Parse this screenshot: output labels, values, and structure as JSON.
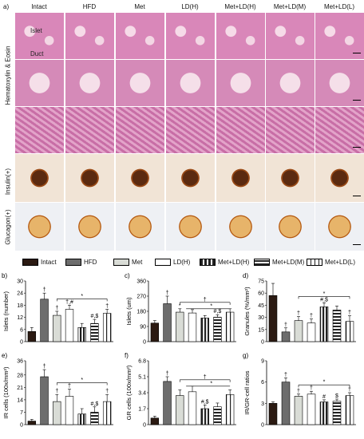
{
  "figure_label": "a)",
  "columns": [
    "Intact",
    "HFD",
    "Met",
    "LD(H)",
    "Met+LD(H)",
    "Met+LD(M)",
    "Met+LD(L)"
  ],
  "row_labels": {
    "he": "Hematoxylin & Eosin",
    "insulin": "Insulin(+)",
    "glucagon": "Glucagon(+)"
  },
  "annotations": {
    "islet": "Islet",
    "duct": "Duct"
  },
  "legend": [
    "Intact",
    "HFD",
    "Met",
    "LD(H)",
    "Met+LD(H)",
    "Met+LD(M)",
    "Met+LD(L)"
  ],
  "colors": {
    "intact": "#2b1a12",
    "hfd": "#6d6d6d",
    "met": "#d9dcd6",
    "ldh": "#ffffff",
    "stripe": "#222222"
  },
  "chart_data": [
    {
      "panel": "b)",
      "type": "bar",
      "ylabel": "Islets (number)",
      "ylim": [
        0,
        30
      ],
      "yticks": [
        0,
        6,
        12,
        18,
        24,
        30
      ],
      "categories": [
        "Intact",
        "HFD",
        "Met",
        "LD(H)",
        "Met+LD(H)",
        "Met+LD(M)",
        "Met+LD(L)"
      ],
      "values": [
        5,
        21,
        13,
        16,
        7,
        9,
        14
      ],
      "errors": [
        2,
        3,
        2,
        2,
        2,
        2,
        2
      ],
      "labels": [
        "",
        "†",
        "†",
        "†,#",
        "",
        "#,$",
        "†"
      ],
      "sig_bracket": "*",
      "group_label": "#,$"
    },
    {
      "panel": "c)",
      "type": "bar",
      "ylabel": "Islets (um)",
      "ylim": [
        0,
        360
      ],
      "yticks": [
        0,
        90,
        180,
        270,
        360
      ],
      "categories": [
        "Intact",
        "HFD",
        "Met",
        "LD(H)",
        "Met+LD(H)",
        "Met+LD(M)",
        "Met+LD(L)"
      ],
      "values": [
        110,
        225,
        175,
        170,
        140,
        145,
        175
      ],
      "errors": [
        15,
        45,
        20,
        20,
        15,
        15,
        20
      ],
      "labels": [
        "",
        "†",
        "*",
        "",
        "",
        "#,$",
        ""
      ],
      "sig_bracket": "†",
      "sig_bracket2": "*"
    },
    {
      "panel": "d)",
      "type": "bar",
      "ylabel": "Granules (%/mm²)",
      "ylim": [
        0,
        75
      ],
      "yticks": [
        0,
        15,
        30,
        45,
        60,
        75
      ],
      "categories": [
        "Intact",
        "HFD",
        "Met",
        "LD(H)",
        "Met+LD(H)",
        "Met+LD(M)",
        "Met+LD(L)"
      ],
      "values": [
        57,
        12,
        26,
        23,
        43,
        39,
        25
      ],
      "errors": [
        15,
        5,
        5,
        5,
        5,
        5,
        7
      ],
      "labels": [
        "",
        "†",
        "†",
        "†",
        "#,$",
        "",
        "†"
      ],
      "sig_bracket": "*"
    },
    {
      "panel": "e)",
      "type": "bar",
      "ylabel": "IR cells (100x/mm²)",
      "ylim": [
        0,
        36
      ],
      "yticks": [
        0,
        7,
        14,
        21,
        28,
        36
      ],
      "categories": [
        "Intact",
        "HFD",
        "Met",
        "LD(H)",
        "Met+LD(H)",
        "Met+LD(M)",
        "Met+LD(L)"
      ],
      "values": [
        2,
        27,
        13,
        16,
        6,
        7,
        13
      ],
      "errors": [
        1,
        4,
        4,
        4,
        3,
        3,
        4
      ],
      "labels": [
        "",
        "†",
        "†",
        "†",
        "",
        "#,$",
        "†"
      ],
      "sig_bracket": "*"
    },
    {
      "panel": "f)",
      "type": "bar",
      "ylabel": "GR cells (100x/mm²)",
      "ylim": [
        0,
        6.8
      ],
      "yticks": [
        0,
        1.7,
        3.4,
        5.1,
        6.8
      ],
      "categories": [
        "Intact",
        "HFD",
        "Met",
        "LD(H)",
        "Met+LD(H)",
        "Met+LD(M)",
        "Met+LD(L)"
      ],
      "values": [
        0.7,
        4.6,
        3.1,
        3.5,
        1.7,
        1.9,
        3.2
      ],
      "errors": [
        0.2,
        0.5,
        0.6,
        0.6,
        0.4,
        0.4,
        0.5
      ],
      "labels": [
        "",
        "†",
        "",
        "",
        "#,$",
        "",
        ""
      ],
      "sig_bracket": "†",
      "sig_bracket2": "*"
    },
    {
      "panel": "g)",
      "type": "bar",
      "ylabel": "IR/GR-cell ratios",
      "ylim": [
        0,
        9
      ],
      "yticks": [
        0,
        3,
        6,
        9
      ],
      "categories": [
        "Intact",
        "HFD",
        "Met",
        "LD(H)",
        "Met+LD(H)",
        "Met+LD(M)",
        "Met+LD(L)"
      ],
      "values": [
        3,
        6,
        4,
        4.3,
        3.2,
        3.3,
        4.1
      ],
      "errors": [
        0.2,
        0.6,
        0.3,
        0.4,
        0.3,
        0.3,
        0.4
      ],
      "labels": [
        "",
        "†",
        "†",
        "†",
        "#",
        "$",
        "†"
      ],
      "sig_bracket": "*"
    }
  ]
}
